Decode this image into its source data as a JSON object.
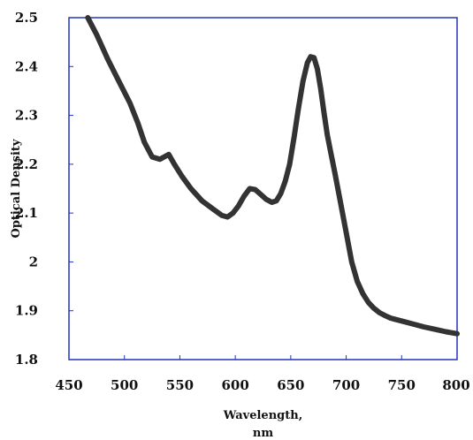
{
  "chart_data": {
    "type": "line",
    "title": "",
    "xlabel": "Wavelength,",
    "xlabel_unit": "nm",
    "ylabel": "Optical Density",
    "xlim": [
      450,
      800
    ],
    "ylim": [
      1.8,
      2.5
    ],
    "x_ticks": [
      "450",
      "500",
      "550",
      "600",
      "650",
      "700",
      "750",
      "800"
    ],
    "y_ticks": [
      "1.8",
      "1.9",
      "2",
      "2.1",
      "2.2",
      "2.3",
      "2.4",
      "2.5"
    ],
    "grid": false,
    "frame_color": "#2233bb",
    "line_color": "#333333",
    "series": [
      {
        "x": [
          467,
          475,
          485,
          495,
          505,
          512,
          518,
          525,
          532,
          540,
          545,
          552,
          560,
          570,
          580,
          588,
          593,
          598,
          603,
          608,
          613,
          618,
          623,
          628,
          633,
          637,
          641,
          645,
          649,
          653,
          657,
          661,
          665,
          668,
          671,
          674,
          677,
          680,
          683,
          686,
          690,
          695,
          700,
          705,
          710,
          715,
          720,
          725,
          730,
          735,
          740,
          745,
          750,
          760,
          770,
          780,
          790,
          800
        ],
        "y": [
          2.5,
          2.465,
          2.415,
          2.37,
          2.325,
          2.285,
          2.245,
          2.215,
          2.21,
          2.22,
          2.2,
          2.175,
          2.15,
          2.125,
          2.108,
          2.095,
          2.092,
          2.1,
          2.115,
          2.135,
          2.15,
          2.148,
          2.138,
          2.128,
          2.122,
          2.125,
          2.14,
          2.165,
          2.2,
          2.255,
          2.315,
          2.37,
          2.408,
          2.42,
          2.418,
          2.395,
          2.355,
          2.305,
          2.26,
          2.225,
          2.18,
          2.12,
          2.06,
          2.0,
          1.96,
          1.935,
          1.917,
          1.905,
          1.896,
          1.89,
          1.885,
          1.882,
          1.879,
          1.873,
          1.867,
          1.862,
          1.857,
          1.853
        ]
      }
    ]
  }
}
